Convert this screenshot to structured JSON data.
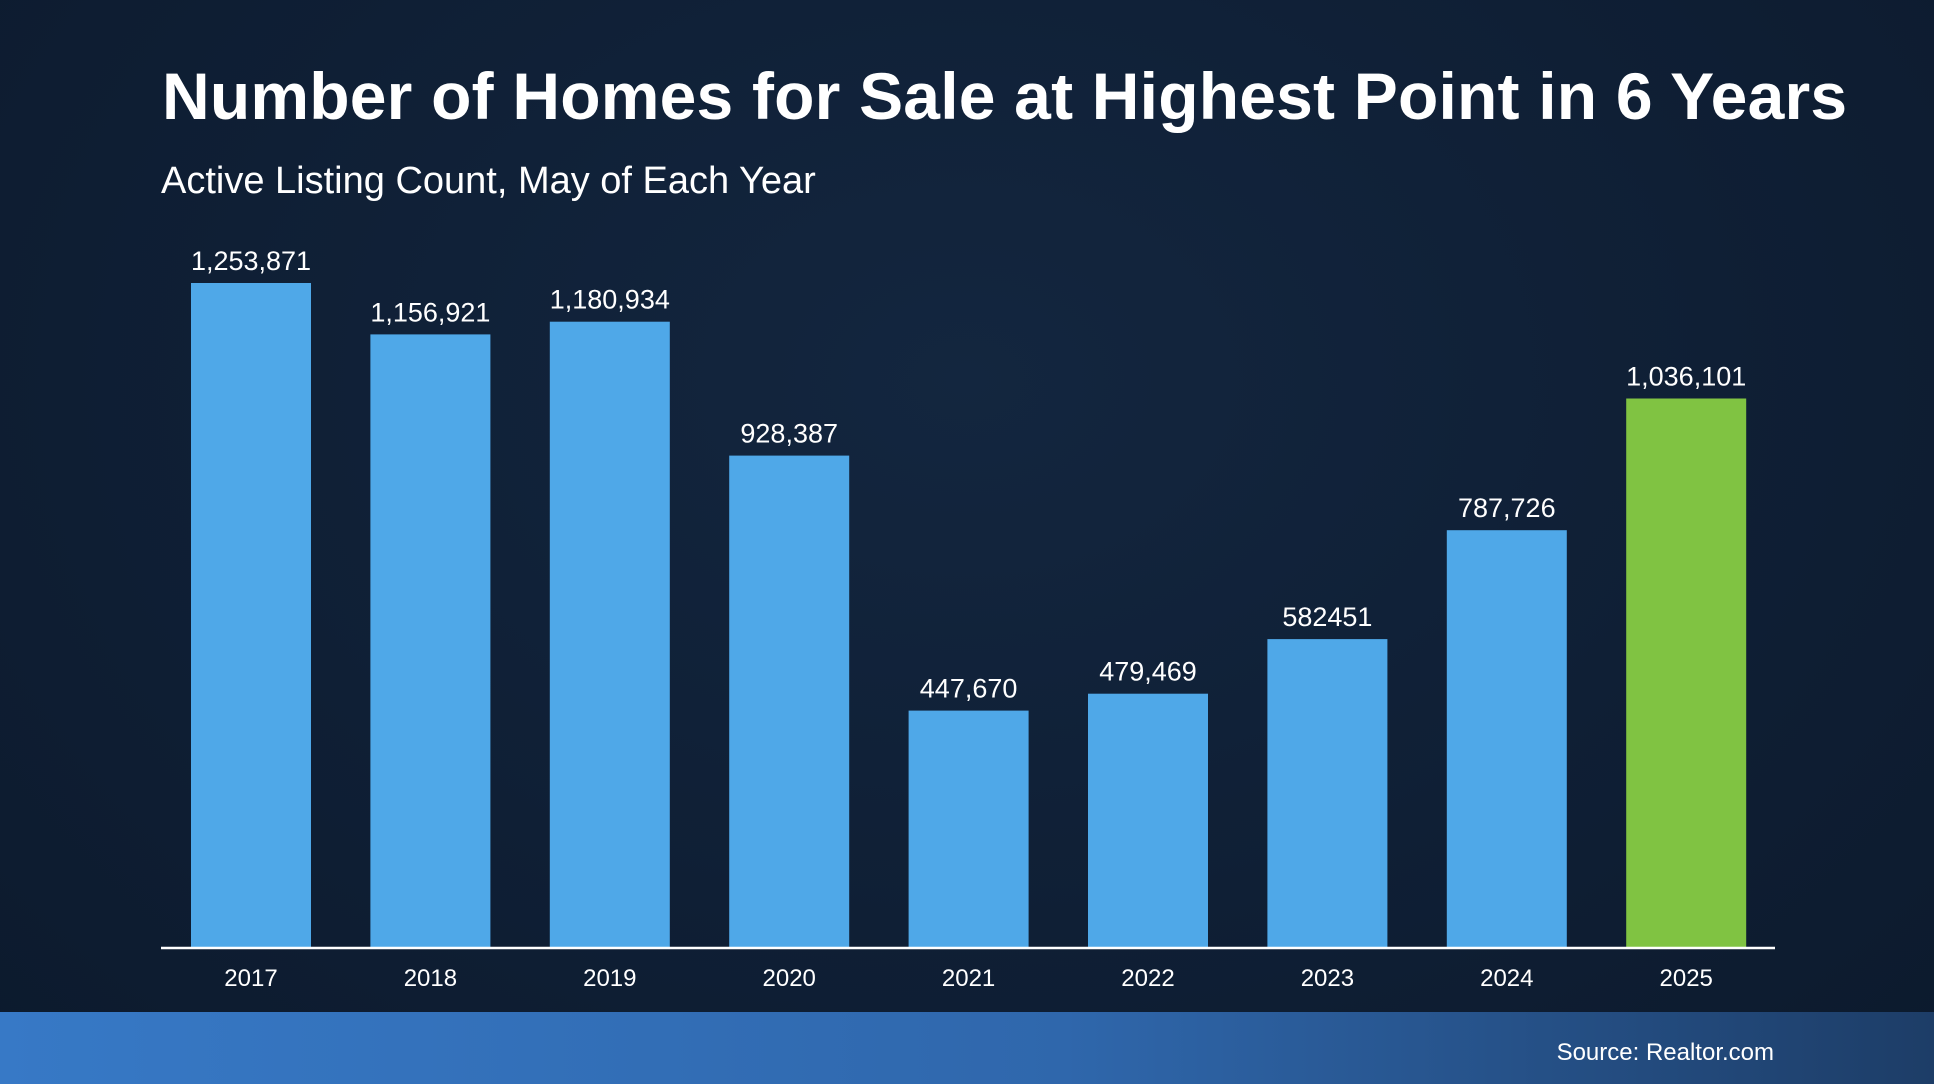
{
  "header": {
    "title": "Number of Homes for Sale at Highest Point in 6 Years",
    "subtitle": "Active Listing Count, May of Each Year"
  },
  "footer": {
    "source": "Source: Realtor.com"
  },
  "colors": {
    "bar": "#4fa8e8",
    "highlight_bar": "#80c342",
    "background": "#0f1f35"
  },
  "chart_data": {
    "type": "bar",
    "title": "Number of Homes for Sale at Highest Point in 6 Years",
    "subtitle": "Active Listing Count, May of Each Year",
    "xlabel": "",
    "ylabel": "",
    "categories": [
      "2017",
      "2018",
      "2019",
      "2020",
      "2021",
      "2022",
      "2023",
      "2024",
      "2025"
    ],
    "values": [
      1253871,
      1156921,
      1180934,
      928387,
      447670,
      479469,
      582451,
      787726,
      1036101
    ],
    "value_labels": [
      "1,253,871",
      "1,156,921",
      "1,180,934",
      "928,387",
      "447,670",
      "479,469",
      "582451",
      "787,726",
      "1,036,101"
    ],
    "highlight_category": "2025",
    "ylim": [
      0,
      1253871
    ],
    "grid": false,
    "legend": "none"
  }
}
